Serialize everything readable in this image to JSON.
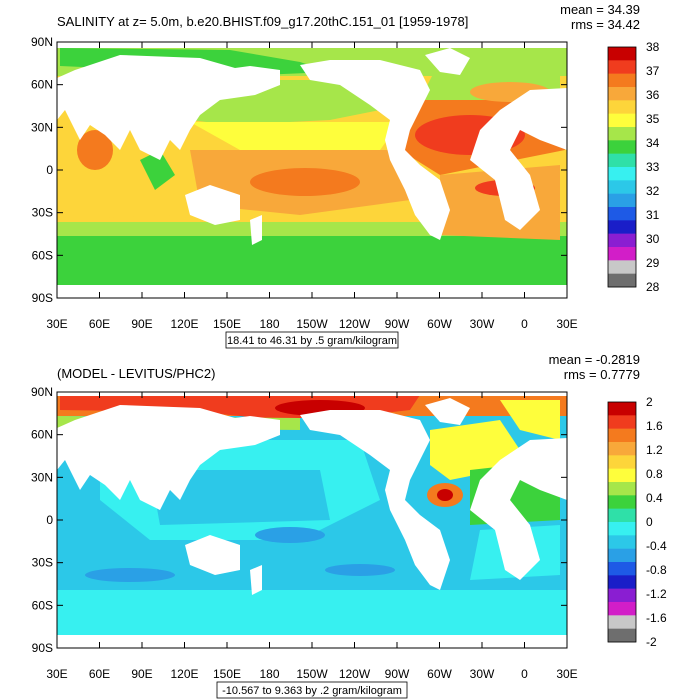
{
  "top_panel": {
    "title": "SALINITY at z=   5.0m, b.e20.BHIST.f09_g17.20thC.151_01 [1959-1978]",
    "mean_text": "mean = 34.39",
    "rms_text": "rms = 34.42",
    "range_text": "18.41 to 46.31 by .5 gram/kilogram",
    "colorbar_labels": [
      "38",
      "37",
      "36",
      "35",
      "34",
      "33",
      "32",
      "31",
      "30",
      "29",
      "28"
    ],
    "colorbar_colors": [
      "#c80000",
      "#f03c1e",
      "#f47a1e",
      "#f8a83a",
      "#fdd53a",
      "#fefe3c",
      "#a6e64a",
      "#3cd23c",
      "#2fe0a8",
      "#37f0f0",
      "#2cc8e8",
      "#2aa0e6",
      "#1e5ae6",
      "#1a1ec8",
      "#8a1ed2",
      "#d21ec8",
      "#c8c8c8",
      "#6e6e6e"
    ]
  },
  "bottom_panel": {
    "title": "(MODEL - LEVITUS/PHC2)",
    "mean_text": "mean = -0.2819",
    "rms_text": "rms = 0.7779",
    "range_text": "-10.567 to 9.363 by .2 gram/kilogram",
    "colorbar_labels": [
      "2",
      "1.6",
      "1.2",
      "0.8",
      "0.4",
      "0",
      "-0.4",
      "-0.8",
      "-1.2",
      "-1.6",
      "-2"
    ],
    "colorbar_colors": [
      "#c80000",
      "#f03c1e",
      "#f47a1e",
      "#f8a83a",
      "#fdd53a",
      "#fefe3c",
      "#a6e64a",
      "#3cd23c",
      "#2fe0a8",
      "#37f0f0",
      "#2cc8e8",
      "#2aa0e6",
      "#1e5ae6",
      "#1a1ec8",
      "#8a1ed2",
      "#d21ec8",
      "#c8c8c8",
      "#6e6e6e"
    ]
  },
  "axes": {
    "lat_labels": [
      "90N",
      "60N",
      "30N",
      "0",
      "30S",
      "60S",
      "90S"
    ],
    "lon_labels": [
      "30E",
      "60E",
      "90E",
      "120E",
      "150E",
      "180",
      "150W",
      "120W",
      "90W",
      "60W",
      "30W",
      "0",
      "30E"
    ]
  }
}
